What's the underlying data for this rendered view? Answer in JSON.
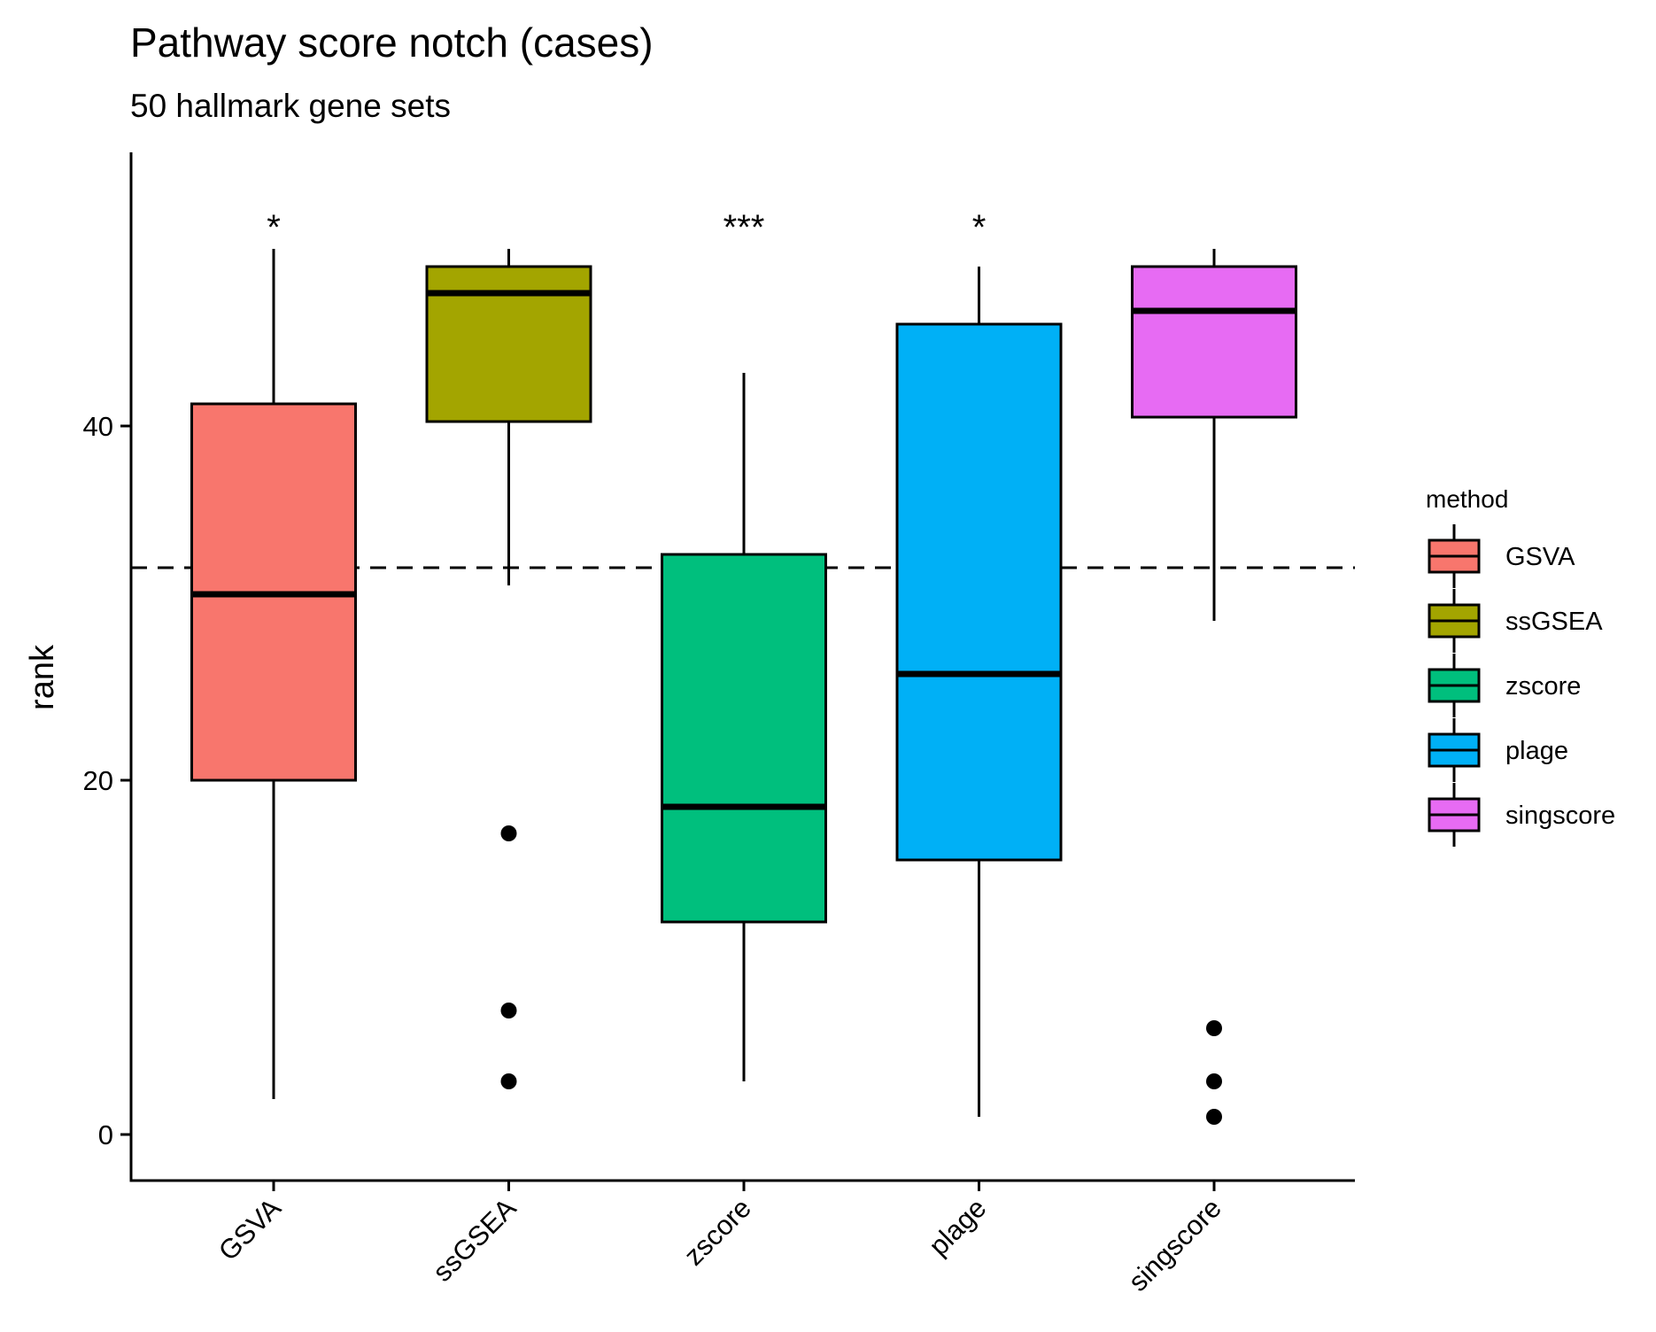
{
  "chart_data": {
    "type": "box",
    "title": "Pathway score notch (cases)",
    "subtitle": "50 hallmark gene sets",
    "xlabel": "",
    "ylabel": "rank",
    "ylim": [
      -2.5,
      55.5
    ],
    "yticks": [
      0,
      20,
      40
    ],
    "reference_line": {
      "y": 32,
      "style": "dashed"
    },
    "grid": false,
    "legend": {
      "title": "method",
      "placement": "right"
    },
    "categories": [
      "GSVA",
      "ssGSEA",
      "zscore",
      "plage",
      "singscore"
    ],
    "series": [
      {
        "name": "GSVA",
        "color": "#F8766D",
        "whisker_low": 2,
        "q1": 20,
        "median": 30.5,
        "q3": 41.25,
        "whisker_high": 50,
        "outliers": [],
        "significance": "*"
      },
      {
        "name": "ssGSEA",
        "color": "#A3A500",
        "whisker_low": 31,
        "q1": 40.25,
        "median": 47.5,
        "q3": 49,
        "whisker_high": 50,
        "outliers": [
          17,
          7,
          3
        ],
        "significance": ""
      },
      {
        "name": "zscore",
        "color": "#00BF7D",
        "whisker_low": 3,
        "q1": 12,
        "median": 18.5,
        "q3": 32.75,
        "whisker_high": 43,
        "outliers": [],
        "significance": "***"
      },
      {
        "name": "plage",
        "color": "#00B0F6",
        "whisker_low": 1,
        "q1": 15.5,
        "median": 26,
        "q3": 45.75,
        "whisker_high": 49,
        "outliers": [],
        "significance": "*"
      },
      {
        "name": "singscore",
        "color": "#E76BF3",
        "whisker_low": 29,
        "q1": 40.5,
        "median": 46.5,
        "q3": 49,
        "whisker_high": 50,
        "outliers": [
          6,
          3,
          1
        ],
        "significance": ""
      }
    ]
  }
}
